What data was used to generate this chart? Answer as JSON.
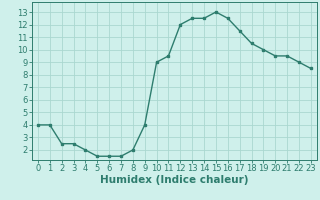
{
  "x": [
    0,
    1,
    2,
    3,
    4,
    5,
    6,
    7,
    8,
    9,
    10,
    11,
    12,
    13,
    14,
    15,
    16,
    17,
    18,
    19,
    20,
    21,
    22,
    23
  ],
  "y": [
    4.0,
    4.0,
    2.5,
    2.5,
    2.0,
    1.5,
    1.5,
    1.5,
    2.0,
    4.0,
    9.0,
    9.5,
    12.0,
    12.5,
    12.5,
    13.0,
    12.5,
    11.5,
    10.5,
    10.0,
    9.5,
    9.5,
    9.0,
    8.5
  ],
  "line_color": "#2e7d6e",
  "marker": "s",
  "marker_size": 2.0,
  "line_width": 1.0,
  "bg_color": "#cff0eb",
  "grid_color": "#aad8d0",
  "xlabel": "Humidex (Indice chaleur)",
  "xlim": [
    -0.5,
    23.5
  ],
  "ylim": [
    1.2,
    13.8
  ],
  "xticks": [
    0,
    1,
    2,
    3,
    4,
    5,
    6,
    7,
    8,
    9,
    10,
    11,
    12,
    13,
    14,
    15,
    16,
    17,
    18,
    19,
    20,
    21,
    22,
    23
  ],
  "yticks": [
    2,
    3,
    4,
    5,
    6,
    7,
    8,
    9,
    10,
    11,
    12,
    13
  ],
  "tick_color": "#2e7d6e",
  "xlabel_fontsize": 7.5,
  "tick_fontsize": 6.0
}
